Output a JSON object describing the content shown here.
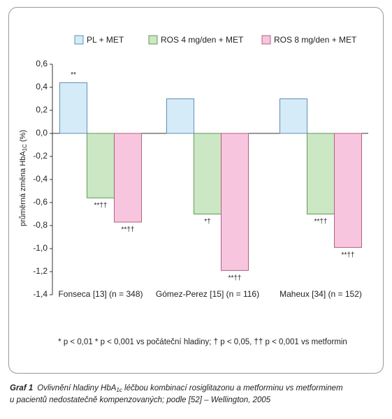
{
  "chart_data": {
    "type": "bar",
    "categories": [
      "Fonseca [13] (n = 348)",
      "Gómez-Perez [15] (n = 116)",
      "Maheux [34] (n = 152)"
    ],
    "series": [
      {
        "name": "PL + MET",
        "color": "#d6ebf8",
        "stroke": "#5b8fb8",
        "values": [
          0.44,
          0.3,
          0.3
        ],
        "annotations": [
          "**",
          null,
          null
        ]
      },
      {
        "name": "ROS 4 mg/den + MET",
        "color": "#cbe7c3",
        "stroke": "#5f9a55",
        "values": [
          -0.56,
          -0.7,
          -0.7
        ],
        "annotations": [
          "**††",
          "*†",
          "**††"
        ]
      },
      {
        "name": "ROS 8 mg/den + MET",
        "color": "#f7c6de",
        "stroke": "#b0607f",
        "values": [
          -0.77,
          -1.19,
          -0.99
        ],
        "annotations": [
          "**††",
          "**††",
          "**††"
        ]
      }
    ],
    "y_label": "průměrná změna HbA",
    "y_label_sub": "1C",
    "y_label_end": " (%)",
    "ylim": [
      -1.4,
      0.6
    ],
    "yticks": [
      {
        "value": 0.6,
        "label": "0,6"
      },
      {
        "value": 0.4,
        "label": "0,4"
      },
      {
        "value": 0.2,
        "label": "0,2"
      },
      {
        "value": 0,
        "label": "0,0"
      },
      {
        "value": -0.2,
        "label": "-0,2"
      },
      {
        "value": -0.4,
        "label": "-0,4"
      },
      {
        "value": -0.6,
        "label": "-0,6"
      },
      {
        "value": -0.8,
        "label": "-0,8"
      },
      {
        "value": -1.0,
        "label": "-1,0"
      },
      {
        "value": -1.2,
        "label": "-1,2"
      },
      {
        "value": -1.4,
        "label": "-1,4"
      }
    ],
    "footnote": "* p < 0,01 * p < 0,001 vs počáteční hladiny; † p < 0,05,  †† p < 0,001 vs metformin"
  },
  "caption": {
    "label": "Graf 1",
    "text_1": "Ovlivnění hladiny HbA",
    "sub": "1c",
    "text_2": " léčbou kombinací rosiglitazonu a metforminu vs metforminem",
    "line_2": "u pacientů nedostatečně kompenzovaných; podle [52] – Wellington, 2005"
  }
}
